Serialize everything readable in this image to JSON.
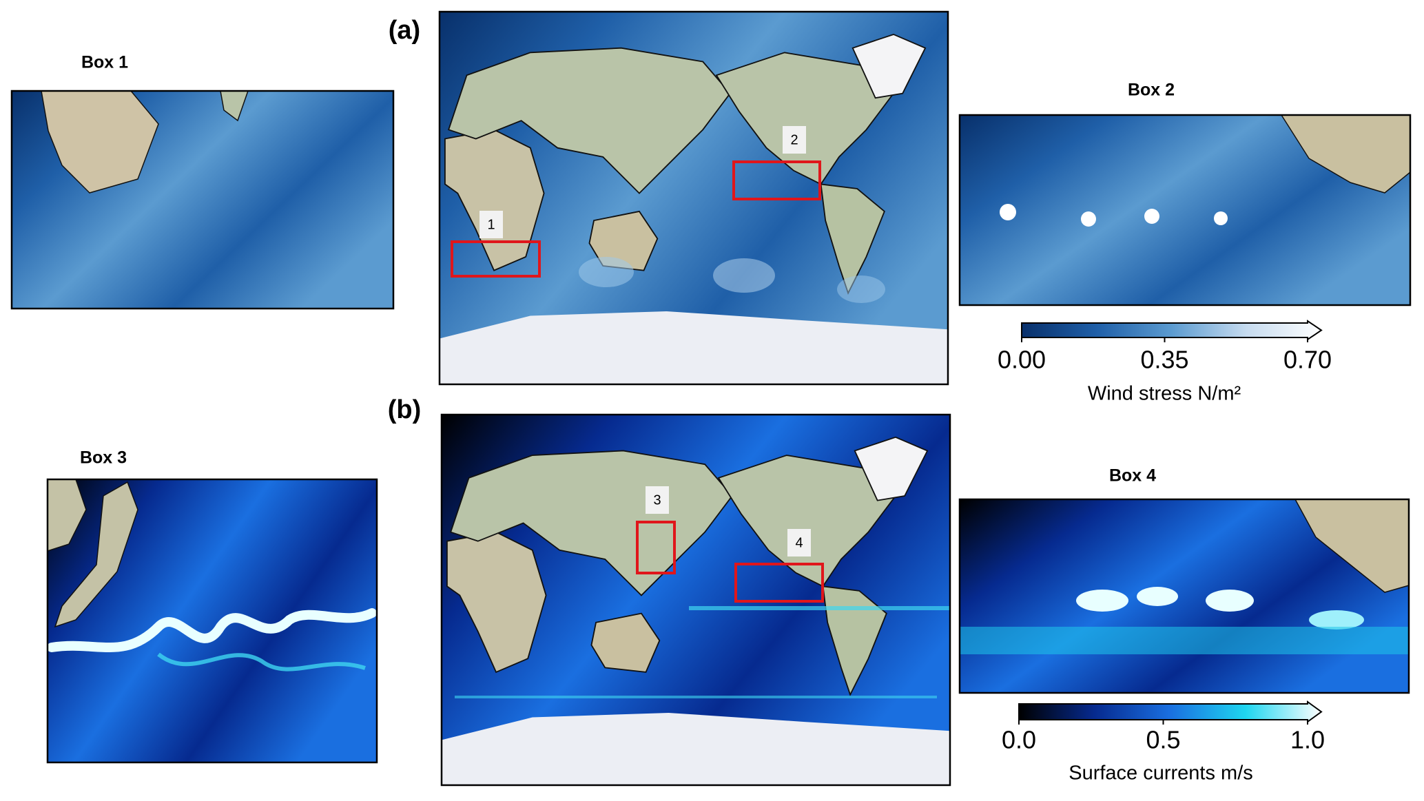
{
  "panels": [
    {
      "label": "(a)",
      "colorbar": {
        "label": "Wind stress N/m²",
        "lim": [
          0,
          0.7
        ],
        "ticks": [
          {
            "value": 0,
            "label": "0.00"
          },
          {
            "value": 0.35,
            "label": "0.35"
          },
          {
            "value": 0.7,
            "label": "0.70"
          }
        ],
        "colors": [
          "#08306b",
          "#1f5fa8",
          "#5b9bd0",
          "#c6dbef",
          "#ffffff"
        ]
      },
      "boxes": [
        {
          "title": "Box 1",
          "marker": "1"
        },
        {
          "title": "Box 2",
          "marker": "2"
        }
      ]
    },
    {
      "label": "(b)",
      "colorbar": {
        "label": "Surface currents m/s",
        "lim": [
          0,
          1.0
        ],
        "ticks": [
          {
            "value": 0,
            "label": "0.0"
          },
          {
            "value": 0.5,
            "label": "0.5"
          },
          {
            "value": 1.0,
            "label": "1.0"
          }
        ],
        "colors": [
          "#000000",
          "#062a8f",
          "#1a6fe0",
          "#1fd6f0",
          "#ffffff"
        ]
      },
      "boxes": [
        {
          "title": "Box 3",
          "marker": "3"
        },
        {
          "title": "Box 4",
          "marker": "4"
        }
      ]
    }
  ]
}
